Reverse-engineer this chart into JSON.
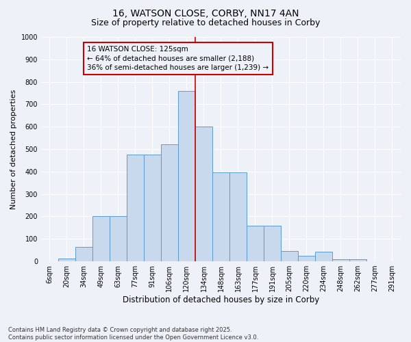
{
  "title_line1": "16, WATSON CLOSE, CORBY, NN17 4AN",
  "title_line2": "Size of property relative to detached houses in Corby",
  "xlabel": "Distribution of detached houses by size in Corby",
  "ylabel": "Number of detached properties",
  "footnote": "Contains HM Land Registry data © Crown copyright and database right 2025.\nContains public sector information licensed under the Open Government Licence v3.0.",
  "categories": [
    "6sqm",
    "20sqm",
    "34sqm",
    "49sqm",
    "63sqm",
    "77sqm",
    "91sqm",
    "106sqm",
    "120sqm",
    "134sqm",
    "148sqm",
    "163sqm",
    "177sqm",
    "191sqm",
    "205sqm",
    "220sqm",
    "234sqm",
    "248sqm",
    "262sqm",
    "277sqm",
    "291sqm"
  ],
  "bar_values": [
    0,
    12,
    65,
    200,
    200,
    475,
    475,
    520,
    760,
    600,
    395,
    395,
    160,
    160,
    45,
    25,
    42,
    10,
    8,
    0,
    0
  ],
  "bar_color": "#c9d9ed",
  "bar_edge_color": "#5b9bd5",
  "annotation_text_line1": "16 WATSON CLOSE: 125sqm",
  "annotation_text_line2": "← 64% of detached houses are smaller (2,188)",
  "annotation_text_line3": "36% of semi-detached houses are larger (1,239) →",
  "vline_x_index": 8.5,
  "vline_color": "#cc0000",
  "ylim": [
    0,
    1000
  ],
  "yticks": [
    0,
    100,
    200,
    300,
    400,
    500,
    600,
    700,
    800,
    900,
    1000
  ],
  "background_color": "#eef2f8",
  "grid_color": "#ffffff",
  "title1_fontsize": 10,
  "title2_fontsize": 9,
  "xlabel_fontsize": 8.5,
  "ylabel_fontsize": 8,
  "tick_fontsize": 7,
  "annotation_fontsize": 7.5,
  "footnote_fontsize": 6
}
